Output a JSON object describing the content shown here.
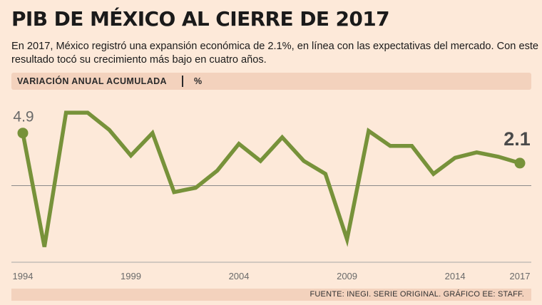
{
  "header": {
    "title": "PIB DE MÉXICO AL CIERRE DE 2017",
    "subtitle": "En 2017, México registró una expansión económica de 2.1%, en línea con las expectativas del mercado. Con este resultado tocó su crecimiento más bajo en cuatro años."
  },
  "band": {
    "label": "VARIACIÓN ANUAL ACUMULADA",
    "unit": "%"
  },
  "source": "FUENTE: INEGI. SERIE ORIGINAL. GRÁFICO EE: STAFF.",
  "colors": {
    "line": "#77923a",
    "background": "#fde9d9",
    "band": "#f3d2bd"
  },
  "chart_data": {
    "type": "line",
    "x": [
      1994,
      1995,
      1996,
      1997,
      1998,
      1999,
      2000,
      2001,
      2002,
      2003,
      2004,
      2005,
      2006,
      2007,
      2008,
      2009,
      2010,
      2011,
      2012,
      2013,
      2014,
      2015,
      2016,
      2017
    ],
    "values": [
      4.9,
      -5.7,
      6.8,
      6.8,
      5.2,
      2.8,
      4.9,
      -0.6,
      -0.2,
      1.4,
      3.9,
      2.3,
      4.5,
      2.3,
      1.1,
      -5.0,
      5.1,
      3.7,
      3.7,
      1.1,
      2.6,
      3.1,
      2.7,
      2.1
    ],
    "xticks": [
      1994,
      1999,
      2004,
      2009,
      2014,
      2017
    ],
    "first_label": "4.9",
    "last_label": "2.1",
    "ylim": [
      -7,
      8
    ],
    "reference_line": 0,
    "grid": false
  }
}
